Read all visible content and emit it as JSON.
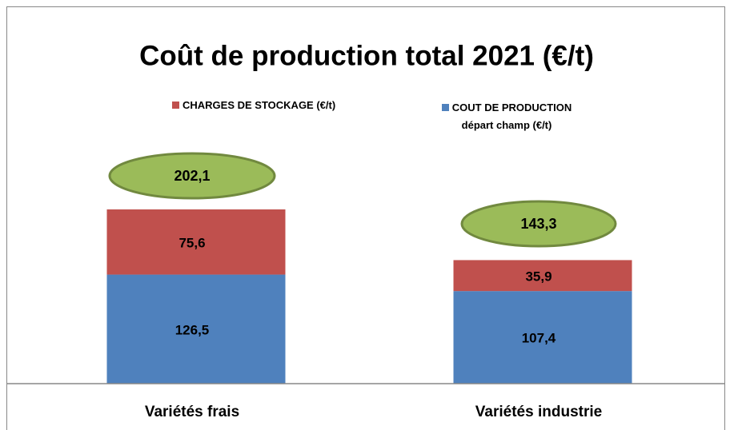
{
  "chart_data": {
    "type": "stacked_bar",
    "title": "Coût de production total 2021 (€/t)",
    "categories": [
      "Variétés frais",
      "Variétés industrie"
    ],
    "series": [
      {
        "name": "COUT DE PRODUCTION départ champ (€/t)",
        "color": "#4f81bd",
        "values": [
          126.5,
          107.4
        ],
        "value_labels": [
          "126,5",
          "107,4"
        ]
      },
      {
        "name": "CHARGES DE STOCKAGE (€/t)",
        "color": "#c0504d",
        "values": [
          75.6,
          35.9
        ],
        "value_labels": [
          "75,6",
          "35,9"
        ]
      }
    ],
    "totals": {
      "values": [
        202.1,
        143.3
      ],
      "value_labels": [
        "202,1",
        "143,3"
      ],
      "color": "#9bbb59"
    }
  }
}
